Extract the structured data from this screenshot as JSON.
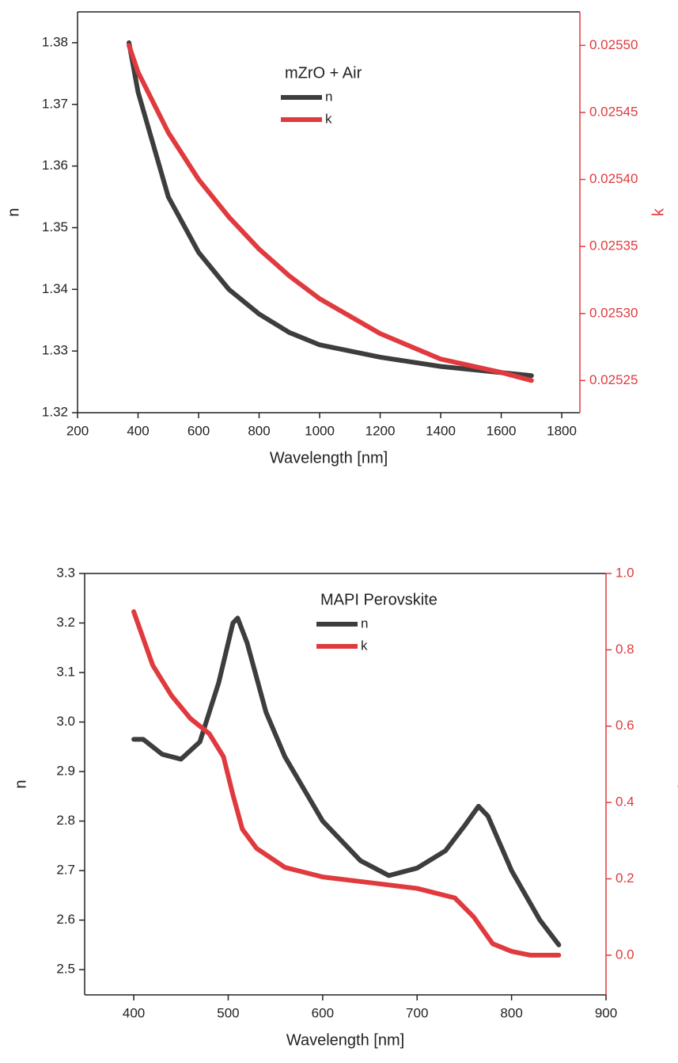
{
  "chart_data": [
    {
      "type": "line",
      "title": "mZrO + Air",
      "x_label": "Wavelength [nm]",
      "y_label": "n",
      "y2_label": "k",
      "xlim": [
        200,
        1860
      ],
      "xticks": [
        200,
        400,
        600,
        800,
        1000,
        1200,
        1400,
        1600,
        1800
      ],
      "ylim": [
        1.32,
        1.385
      ],
      "yticks": [
        1.32,
        1.33,
        1.34,
        1.35,
        1.36,
        1.37,
        1.38
      ],
      "y2lim": [
        0.025226,
        0.025525
      ],
      "y2ticks": [
        {
          "value": 0.02525,
          "label": "0.02525"
        },
        {
          "value": 0.0253,
          "label": "0.02530"
        },
        {
          "value": 0.02535,
          "label": "0.02535"
        },
        {
          "value": 0.0254,
          "label": "0.02540"
        },
        {
          "value": 0.02545,
          "label": "0.02545"
        },
        {
          "value": 0.0255,
          "label": "0.02550"
        }
      ],
      "series": [
        {
          "name": "n",
          "color": "#3d3d3d",
          "x": [
            370,
            400,
            500,
            600,
            700,
            800,
            900,
            1000,
            1200,
            1400,
            1600,
            1700
          ],
          "values": [
            1.38,
            1.372,
            1.355,
            1.346,
            1.34,
            1.336,
            1.333,
            1.331,
            1.329,
            1.3275,
            1.3265,
            1.326
          ]
        },
        {
          "name": "k",
          "color": "#e03a3e",
          "axis": "y2",
          "x": [
            370,
            400,
            500,
            600,
            700,
            800,
            900,
            1000,
            1200,
            1400,
            1600,
            1700
          ],
          "values": [
            0.0255,
            0.02548,
            0.025435,
            0.0254,
            0.025372,
            0.025348,
            0.025328,
            0.025311,
            0.025285,
            0.025266,
            0.025256,
            0.02525
          ]
        }
      ]
    },
    {
      "type": "line",
      "title": "MAPI Perovskite",
      "x_label": "Wavelength [nm]",
      "y_label": "n",
      "y2_label": "k",
      "xlim": [
        348,
        900
      ],
      "xticks": [
        400,
        500,
        600,
        700,
        800,
        900
      ],
      "ylim": [
        2.449,
        3.3
      ],
      "yticks": [
        2.5,
        2.6,
        2.7,
        2.8,
        2.9,
        {
          "value": 3,
          "label": "3.0"
        },
        3.1,
        3.2,
        3.3
      ],
      "y2lim": [
        -0.104,
        1.0
      ],
      "y2ticks": [
        {
          "value": 0,
          "label": "0.0"
        },
        0.2,
        0.4,
        0.6,
        0.8,
        {
          "value": 1,
          "label": "1.0"
        }
      ],
      "series": [
        {
          "name": "n",
          "color": "#3d3d3d",
          "x": [
            400,
            410,
            430,
            450,
            470,
            490,
            505,
            510,
            520,
            540,
            560,
            600,
            640,
            670,
            700,
            730,
            750,
            765,
            775,
            800,
            830,
            850
          ],
          "values": [
            2.965,
            2.965,
            2.935,
            2.925,
            2.96,
            3.08,
            3.2,
            3.21,
            3.16,
            3.02,
            2.93,
            2.8,
            2.72,
            2.69,
            2.705,
            2.74,
            2.79,
            2.83,
            2.81,
            2.7,
            2.6,
            2.55
          ]
        },
        {
          "name": "k",
          "color": "#e03a3e",
          "axis": "y2",
          "x": [
            400,
            420,
            440,
            460,
            480,
            495,
            505,
            515,
            530,
            560,
            600,
            650,
            700,
            740,
            760,
            780,
            800,
            820,
            850
          ],
          "values": [
            0.9,
            0.76,
            0.68,
            0.62,
            0.58,
            0.52,
            0.42,
            0.33,
            0.28,
            0.23,
            0.205,
            0.19,
            0.175,
            0.15,
            0.1,
            0.03,
            0.01,
            0.0,
            0.0
          ]
        }
      ]
    }
  ]
}
